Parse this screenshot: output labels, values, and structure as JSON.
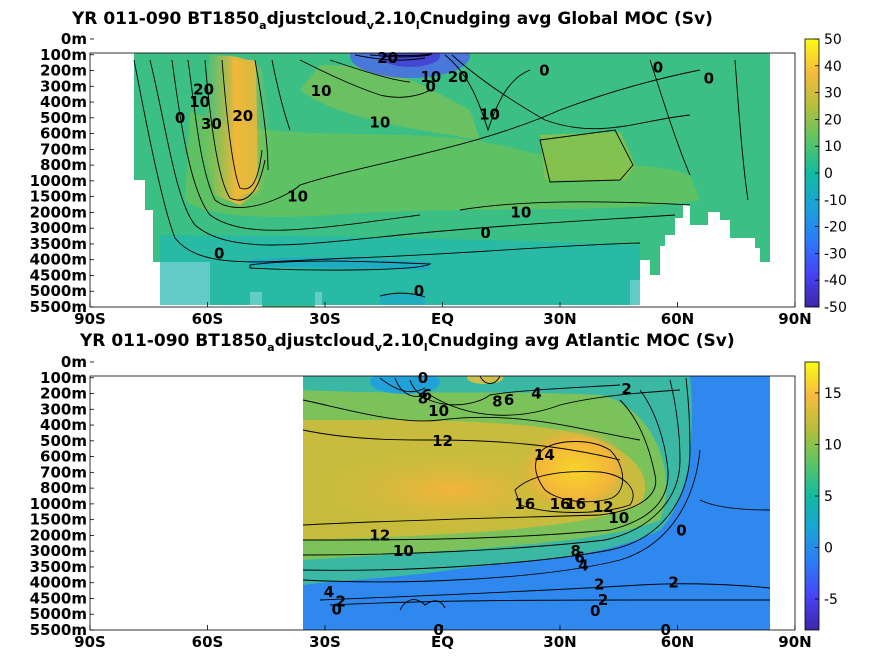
{
  "colors": {
    "parula_stops": [
      "#3e26a8",
      "#4743f5",
      "#2d7bf9",
      "#1aa3d8",
      "#12bba0",
      "#5cc464",
      "#b6bf3a",
      "#f7ba3d",
      "#f9fb15"
    ]
  },
  "chart_data": [
    {
      "type": "heatmap",
      "title": "YR 011-090 BT1850",
      "title_sub1": "a",
      "title_mid1": "djustcloud",
      "title_sub2": "v",
      "title_mid2": "2.10",
      "title_sub3": "l",
      "title_mid3": "Cnudging avg  Global MOC (Sv)",
      "x_ticks": [
        "90S",
        "60S",
        "30S",
        "EQ",
        "30N",
        "60N",
        "90N"
      ],
      "x_values": [
        -90,
        -60,
        -30,
        0,
        30,
        60,
        90
      ],
      "y_ticks": [
        "0m",
        "100m",
        "200m",
        "300m",
        "400m",
        "500m",
        "600m",
        "700m",
        "800m",
        "1000m",
        "1500m",
        "2000m",
        "3000m",
        "3500m",
        "4000m",
        "4500m",
        "5000m",
        "5500m"
      ],
      "colorbar": {
        "ticks": [
          "50",
          "40",
          "30",
          "20",
          "10",
          "0",
          "-10",
          "-20",
          "-30",
          "-40",
          "-50"
        ],
        "min": -50,
        "max": 50
      },
      "contour_labels": [
        {
          "text": "20",
          "lat": -14,
          "depth_level": 1.2
        },
        {
          "text": "10",
          "lat": -3,
          "depth_level": 2.4
        },
        {
          "text": "0",
          "lat": -3,
          "depth_level": 3.0
        },
        {
          "text": "20",
          "lat": 4,
          "depth_level": 2.4
        },
        {
          "text": "10",
          "lat": -31,
          "depth_level": 3.3
        },
        {
          "text": "20",
          "lat": -61,
          "depth_level": 3.2
        },
        {
          "text": "10",
          "lat": -62,
          "depth_level": 4.0
        },
        {
          "text": "30",
          "lat": -59,
          "depth_level": 5.4
        },
        {
          "text": "20",
          "lat": -51,
          "depth_level": 4.9
        },
        {
          "text": "0",
          "lat": -67,
          "depth_level": 5.0
        },
        {
          "text": "10",
          "lat": -16,
          "depth_level": 5.3
        },
        {
          "text": "10",
          "lat": 12,
          "depth_level": 4.8
        },
        {
          "text": "0",
          "lat": 26,
          "depth_level": 2.0
        },
        {
          "text": "0",
          "lat": 55,
          "depth_level": 1.8
        },
        {
          "text": "0",
          "lat": 68,
          "depth_level": 2.5
        },
        {
          "text": "10",
          "lat": -37,
          "depth_level": 10.0
        },
        {
          "text": "10",
          "lat": 20,
          "depth_level": 11.0
        },
        {
          "text": "0",
          "lat": 11,
          "depth_level": 12.3
        },
        {
          "text": "0",
          "lat": -57,
          "depth_level": 13.6
        },
        {
          "text": "0",
          "lat": -6,
          "depth_level": 16.0
        }
      ]
    },
    {
      "type": "heatmap",
      "title": "YR 011-090 BT1850",
      "title_sub1": "a",
      "title_mid1": "djustcloud",
      "title_sub2": "v",
      "title_mid2": "2.10",
      "title_sub3": "l",
      "title_mid3": "Cnudging avg  Atlantic MOC (Sv)",
      "x_ticks": [
        "90S",
        "60S",
        "30S",
        "EQ",
        "30N",
        "60N",
        "90N"
      ],
      "x_values": [
        -90,
        -60,
        -30,
        0,
        30,
        60,
        90
      ],
      "y_ticks": [
        "0m",
        "100m",
        "200m",
        "300m",
        "400m",
        "500m",
        "600m",
        "700m",
        "800m",
        "1000m",
        "1500m",
        "2000m",
        "3000m",
        "3500m",
        "4000m",
        "4500m",
        "5000m",
        "5500m"
      ],
      "colorbar": {
        "ticks": [
          "15",
          "10",
          "5",
          "0",
          "-5"
        ],
        "min": -8,
        "max": 18
      },
      "contour_labels": [
        {
          "text": "0",
          "lat": -5,
          "depth_level": 1.0
        },
        {
          "text": "8",
          "lat": -5,
          "depth_level": 2.3
        },
        {
          "text": "6",
          "lat": -4,
          "depth_level": 2.1
        },
        {
          "text": "10",
          "lat": -1,
          "depth_level": 3.1
        },
        {
          "text": "8",
          "lat": 14,
          "depth_level": 2.5
        },
        {
          "text": "6",
          "lat": 17,
          "depth_level": 2.4
        },
        {
          "text": "4",
          "lat": 24,
          "depth_level": 2.0
        },
        {
          "text": "2",
          "lat": 47,
          "depth_level": 1.7
        },
        {
          "text": "12",
          "lat": 0,
          "depth_level": 5.0
        },
        {
          "text": "14",
          "lat": 26,
          "depth_level": 5.9
        },
        {
          "text": "16",
          "lat": 21,
          "depth_level": 9.0
        },
        {
          "text": "16",
          "lat": 30,
          "depth_level": 9.0
        },
        {
          "text": "16",
          "lat": 34,
          "depth_level": 9.0
        },
        {
          "text": "12",
          "lat": 41,
          "depth_level": 9.2
        },
        {
          "text": "10",
          "lat": 45,
          "depth_level": 9.9
        },
        {
          "text": "0",
          "lat": 61,
          "depth_level": 10.7
        },
        {
          "text": "12",
          "lat": -16,
          "depth_level": 11.0
        },
        {
          "text": "10",
          "lat": -10,
          "depth_level": 12.0
        },
        {
          "text": "8",
          "lat": 34,
          "depth_level": 12.0
        },
        {
          "text": "6",
          "lat": 35,
          "depth_level": 12.4
        },
        {
          "text": "4",
          "lat": 36,
          "depth_level": 12.9
        },
        {
          "text": "2",
          "lat": 40,
          "depth_level": 14.1
        },
        {
          "text": "2",
          "lat": 59,
          "depth_level": 14.0
        },
        {
          "text": "4",
          "lat": -29,
          "depth_level": 14.6
        },
        {
          "text": "2",
          "lat": -26,
          "depth_level": 15.2
        },
        {
          "text": "0",
          "lat": -27,
          "depth_level": 15.7
        },
        {
          "text": "2",
          "lat": 41,
          "depth_level": 15.1
        },
        {
          "text": "0",
          "lat": 39,
          "depth_level": 15.8
        },
        {
          "text": "0",
          "lat": -1,
          "depth_level": 17.0
        },
        {
          "text": "0",
          "lat": 57,
          "depth_level": 17.0
        }
      ]
    }
  ]
}
